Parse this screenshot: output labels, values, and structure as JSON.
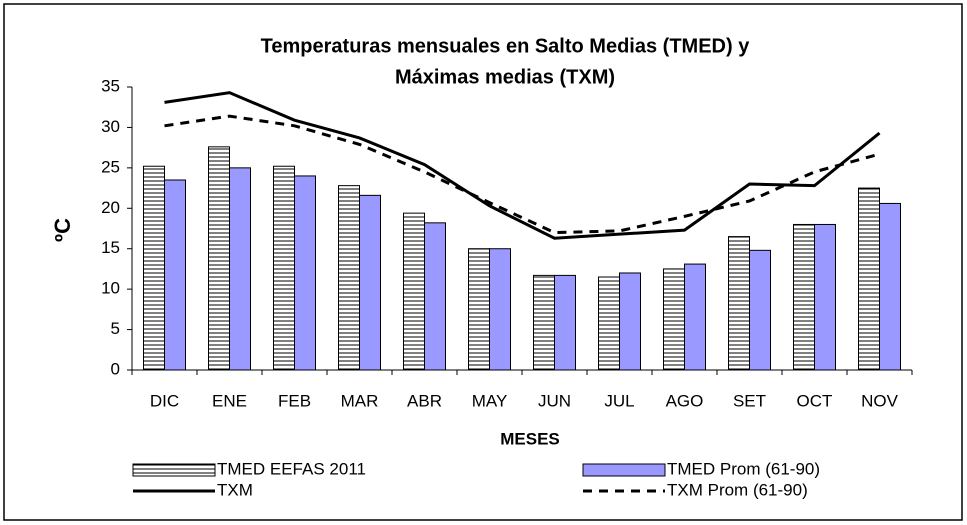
{
  "chart_data": {
    "type": "bar_line",
    "title": [
      "Temperaturas mensuales en Salto Medias (TMED) y",
      "Máximas medias (TXM)"
    ],
    "xlabel": "MESES",
    "ylabel": "ºC",
    "categories": [
      "DIC",
      "ENE",
      "FEB",
      "MAR",
      "ABR",
      "MAY",
      "JUN",
      "JUL",
      "AGO",
      "SET",
      "OCT",
      "NOV"
    ],
    "series": [
      {
        "name": "TMED EEFAS 2011",
        "kind": "bar",
        "color": "#000000",
        "pattern": "horizontal-lines",
        "values": [
          25.2,
          27.6,
          25.2,
          22.8,
          19.4,
          15,
          11.7,
          11.5,
          12.5,
          16.5,
          18,
          22.5
        ]
      },
      {
        "name": "TMED Prom (61-90)",
        "kind": "bar",
        "color": "#9999ff",
        "values": [
          23.5,
          25,
          24,
          21.6,
          18.2,
          15,
          11.7,
          12,
          13.1,
          14.8,
          18,
          20.6
        ]
      },
      {
        "name": "TXM",
        "kind": "line",
        "color": "#000000",
        "dash": "solid",
        "values": [
          33.1,
          34.3,
          30.9,
          28.7,
          25.4,
          20.3,
          16.3,
          16.8,
          17.3,
          23,
          22.8,
          29.3
        ]
      },
      {
        "name": "TXM Prom (61-90)",
        "kind": "line",
        "color": "#000000",
        "dash": "dashed",
        "values": [
          30.2,
          31.4,
          30.2,
          27.9,
          24.5,
          20.7,
          17,
          17.2,
          19,
          20.9,
          24.5,
          26.7
        ]
      }
    ],
    "ylim": [
      0,
      35
    ],
    "yticks": [
      0,
      5,
      10,
      15,
      20,
      25,
      30,
      35
    ],
    "grid": false
  }
}
